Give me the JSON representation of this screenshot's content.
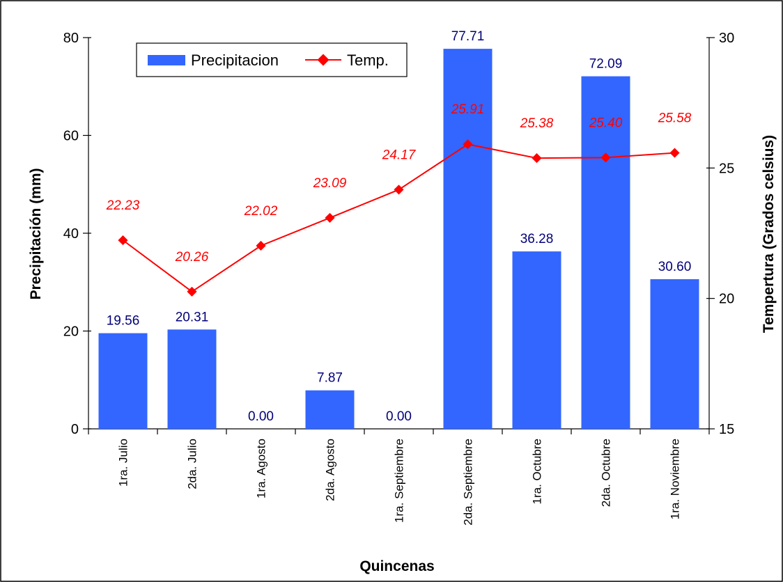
{
  "chart_data": {
    "type": "bar",
    "categories": [
      "1ra. Julio",
      "2da. Julio",
      "1ra. Agosto",
      "2da. Agosto",
      "1ra. Septiembre",
      "2da. Septiembre",
      "1ra. Octubre",
      "2da. Octubre",
      "1ra. Noviembre"
    ],
    "series": [
      {
        "name": "Precipitacion",
        "type": "bar",
        "axis": "left",
        "color": "#3366ff",
        "values": [
          19.56,
          20.31,
          0.0,
          7.87,
          0.0,
          77.71,
          36.28,
          72.09,
          30.6
        ],
        "labels": [
          "19.56",
          "20.31",
          "0.00",
          "7.87",
          "0.00",
          "77.71",
          "36.28",
          "72.09",
          "30.60"
        ]
      },
      {
        "name": "Temp.",
        "type": "line",
        "axis": "right",
        "color": "#ff0000",
        "marker": "diamond",
        "values": [
          22.23,
          20.26,
          22.02,
          23.09,
          24.17,
          25.91,
          25.38,
          25.4,
          25.58
        ],
        "labels": [
          "22.23",
          "20.26",
          "22.02",
          "23.09",
          "24.17",
          "25.91",
          "25.38",
          "25.40",
          "25.58"
        ]
      }
    ],
    "xlabel": "Quincenas",
    "ylabel": "Precipitación (mm)",
    "y2label": "Tempertura (Grados celsius)",
    "ylim": [
      0,
      80
    ],
    "y2lim": [
      15,
      30
    ],
    "yticks": [
      "0",
      "20",
      "40",
      "60",
      "80"
    ],
    "y2ticks": [
      "15",
      "20",
      "25",
      "30"
    ],
    "grid": false,
    "legend_position": "top-left"
  }
}
